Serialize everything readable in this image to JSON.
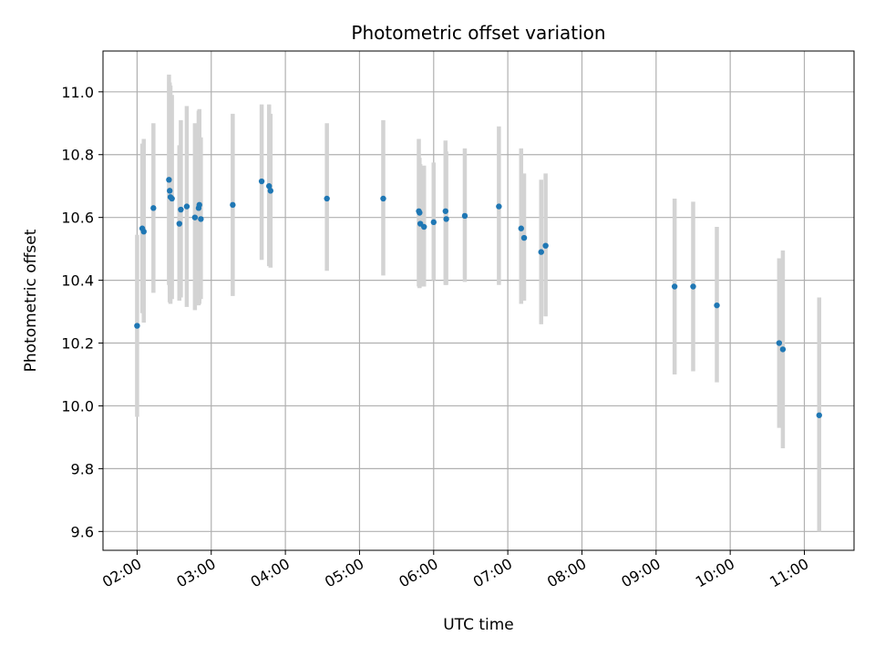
{
  "chart_data": {
    "type": "scatter",
    "title": "Photometric offset variation",
    "xlabel": "UTC time",
    "ylabel": "Photometric offset",
    "x_unit": "hours UTC",
    "xlim": [
      1.54,
      11.67
    ],
    "ylim": [
      9.54,
      11.13
    ],
    "grid": true,
    "colors": {
      "marker": "#1f77b4",
      "errorbar": "#d3d3d3",
      "grid": "#b0b0b0"
    },
    "x_ticks": [
      {
        "value": 2,
        "label": "02:00"
      },
      {
        "value": 3,
        "label": "03:00"
      },
      {
        "value": 4,
        "label": "04:00"
      },
      {
        "value": 5,
        "label": "05:00"
      },
      {
        "value": 6,
        "label": "06:00"
      },
      {
        "value": 7,
        "label": "07:00"
      },
      {
        "value": 8,
        "label": "08:00"
      },
      {
        "value": 9,
        "label": "09:00"
      },
      {
        "value": 10,
        "label": "10:00"
      },
      {
        "value": 11,
        "label": "11:00"
      }
    ],
    "y_ticks": [
      {
        "value": 9.6,
        "label": "9.6"
      },
      {
        "value": 9.8,
        "label": "9.8"
      },
      {
        "value": 10.0,
        "label": "10.0"
      },
      {
        "value": 10.2,
        "label": "10.2"
      },
      {
        "value": 10.4,
        "label": "10.4"
      },
      {
        "value": 10.6,
        "label": "10.6"
      },
      {
        "value": 10.8,
        "label": "10.8"
      },
      {
        "value": 11.0,
        "label": "11.0"
      }
    ],
    "points": [
      {
        "x": 2.0,
        "y": 10.255,
        "lo": 9.965,
        "hi": 10.545
      },
      {
        "x": 2.07,
        "y": 10.565,
        "lo": 10.295,
        "hi": 10.835
      },
      {
        "x": 2.09,
        "y": 10.555,
        "lo": 10.265,
        "hi": 10.85
      },
      {
        "x": 2.22,
        "y": 10.63,
        "lo": 10.36,
        "hi": 10.9
      },
      {
        "x": 2.43,
        "y": 10.72,
        "lo": 10.385,
        "hi": 11.055
      },
      {
        "x": 2.44,
        "y": 10.685,
        "lo": 10.33,
        "hi": 11.03
      },
      {
        "x": 2.45,
        "y": 10.665,
        "lo": 10.325,
        "hi": 11.02
      },
      {
        "x": 2.47,
        "y": 10.66,
        "lo": 10.34,
        "hi": 10.99
      },
      {
        "x": 2.57,
        "y": 10.58,
        "lo": 10.335,
        "hi": 10.83
      },
      {
        "x": 2.59,
        "y": 10.625,
        "lo": 10.345,
        "hi": 10.91
      },
      {
        "x": 2.67,
        "y": 10.635,
        "lo": 10.315,
        "hi": 10.955
      },
      {
        "x": 2.78,
        "y": 10.6,
        "lo": 10.305,
        "hi": 10.9
      },
      {
        "x": 2.83,
        "y": 10.63,
        "lo": 10.32,
        "hi": 10.94
      },
      {
        "x": 2.84,
        "y": 10.64,
        "lo": 10.325,
        "hi": 10.945
      },
      {
        "x": 2.86,
        "y": 10.595,
        "lo": 10.34,
        "hi": 10.855
      },
      {
        "x": 3.29,
        "y": 10.64,
        "lo": 10.35,
        "hi": 10.93
      },
      {
        "x": 3.68,
        "y": 10.715,
        "lo": 10.465,
        "hi": 10.96
      },
      {
        "x": 3.78,
        "y": 10.7,
        "lo": 10.445,
        "hi": 10.96
      },
      {
        "x": 3.8,
        "y": 10.685,
        "lo": 10.44,
        "hi": 10.93
      },
      {
        "x": 4.56,
        "y": 10.66,
        "lo": 10.43,
        "hi": 10.9
      },
      {
        "x": 5.32,
        "y": 10.66,
        "lo": 10.415,
        "hi": 10.91
      },
      {
        "x": 5.8,
        "y": 10.62,
        "lo": 10.38,
        "hi": 10.85
      },
      {
        "x": 5.81,
        "y": 10.615,
        "lo": 10.375,
        "hi": 10.79
      },
      {
        "x": 5.82,
        "y": 10.58,
        "lo": 10.38,
        "hi": 10.77
      },
      {
        "x": 5.87,
        "y": 10.57,
        "lo": 10.38,
        "hi": 10.765
      },
      {
        "x": 6.0,
        "y": 10.585,
        "lo": 10.4,
        "hi": 10.775
      },
      {
        "x": 6.16,
        "y": 10.62,
        "lo": 10.385,
        "hi": 10.845
      },
      {
        "x": 6.17,
        "y": 10.595,
        "lo": 10.385,
        "hi": 10.81
      },
      {
        "x": 6.42,
        "y": 10.605,
        "lo": 10.395,
        "hi": 10.82
      },
      {
        "x": 6.88,
        "y": 10.635,
        "lo": 10.385,
        "hi": 10.89
      },
      {
        "x": 7.18,
        "y": 10.565,
        "lo": 10.325,
        "hi": 10.82
      },
      {
        "x": 7.22,
        "y": 10.535,
        "lo": 10.335,
        "hi": 10.74
      },
      {
        "x": 7.45,
        "y": 10.49,
        "lo": 10.26,
        "hi": 10.72
      },
      {
        "x": 7.51,
        "y": 10.51,
        "lo": 10.285,
        "hi": 10.74
      },
      {
        "x": 9.25,
        "y": 10.38,
        "lo": 10.1,
        "hi": 10.66
      },
      {
        "x": 9.5,
        "y": 10.38,
        "lo": 10.11,
        "hi": 10.65
      },
      {
        "x": 9.82,
        "y": 10.32,
        "lo": 10.075,
        "hi": 10.57
      },
      {
        "x": 10.66,
        "y": 10.2,
        "lo": 9.93,
        "hi": 10.47
      },
      {
        "x": 10.71,
        "y": 10.18,
        "lo": 9.865,
        "hi": 10.495
      },
      {
        "x": 11.2,
        "y": 9.97,
        "lo": 9.6,
        "hi": 10.345
      }
    ]
  }
}
